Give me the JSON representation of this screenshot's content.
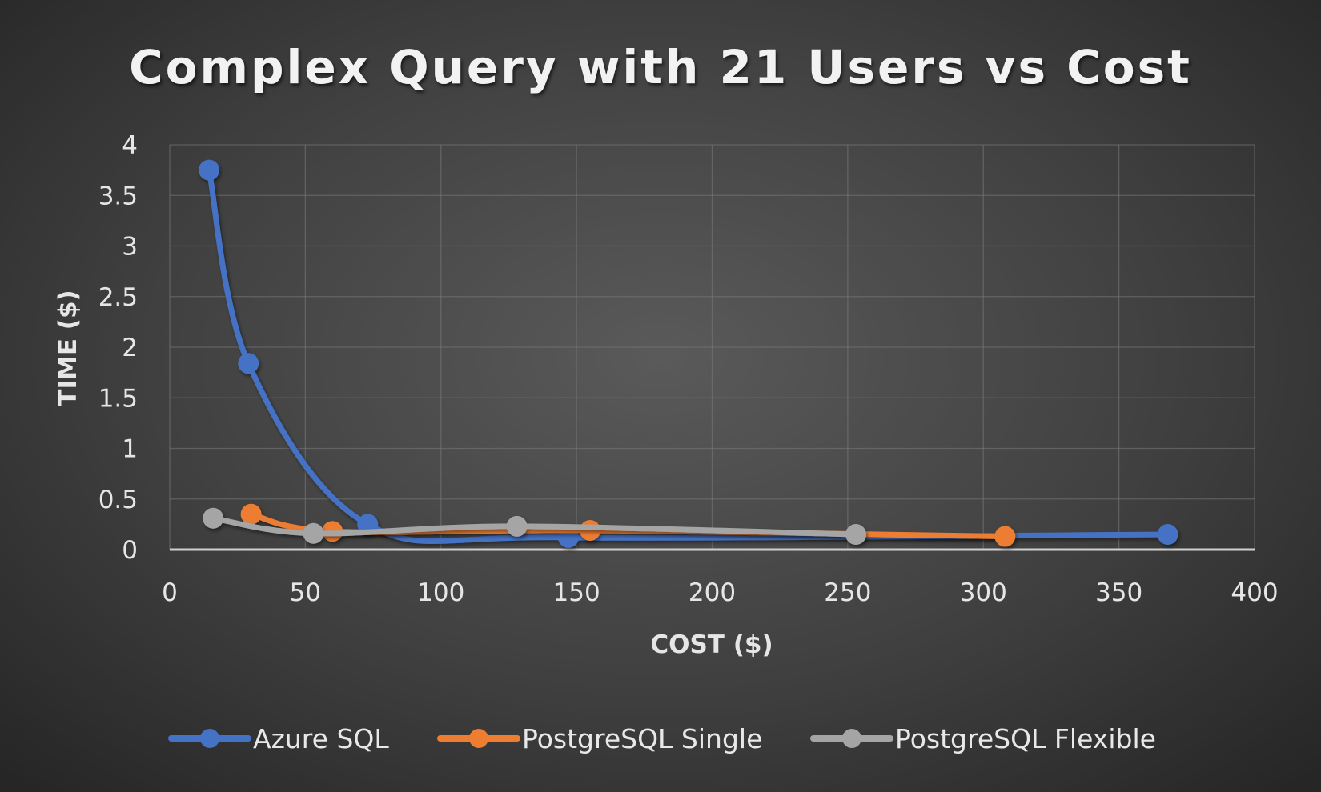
{
  "chart_data": {
    "type": "scatter",
    "title": "Complex Query with 21 Users vs Cost",
    "xlabel": "COST ($)",
    "ylabel": "TIME ($)",
    "xlim": [
      0,
      400
    ],
    "ylim": [
      0,
      4
    ],
    "x_ticks": [
      "0",
      "50",
      "100",
      "150",
      "200",
      "250",
      "300",
      "350",
      "400"
    ],
    "y_ticks": [
      "0",
      "0.5",
      "1",
      "1.5",
      "2",
      "2.5",
      "3",
      "3.5",
      "4"
    ],
    "grid": true,
    "smooth_lines": true,
    "legend_position": "bottom",
    "series": [
      {
        "name": "Azure SQL",
        "color": "#4472c4",
        "x": [
          14.5,
          29,
          73,
          147,
          368
        ],
        "y": [
          3.75,
          1.84,
          0.25,
          0.12,
          0.15
        ]
      },
      {
        "name": "PostgreSQL Single",
        "color": "#ed7d31",
        "x": [
          30,
          60,
          155,
          308
        ],
        "y": [
          0.35,
          0.18,
          0.19,
          0.13
        ]
      },
      {
        "name": "PostgreSQL Flexible",
        "color": "#a5a5a5",
        "x": [
          16,
          53,
          128,
          253
        ],
        "y": [
          0.31,
          0.16,
          0.23,
          0.15
        ]
      }
    ]
  }
}
